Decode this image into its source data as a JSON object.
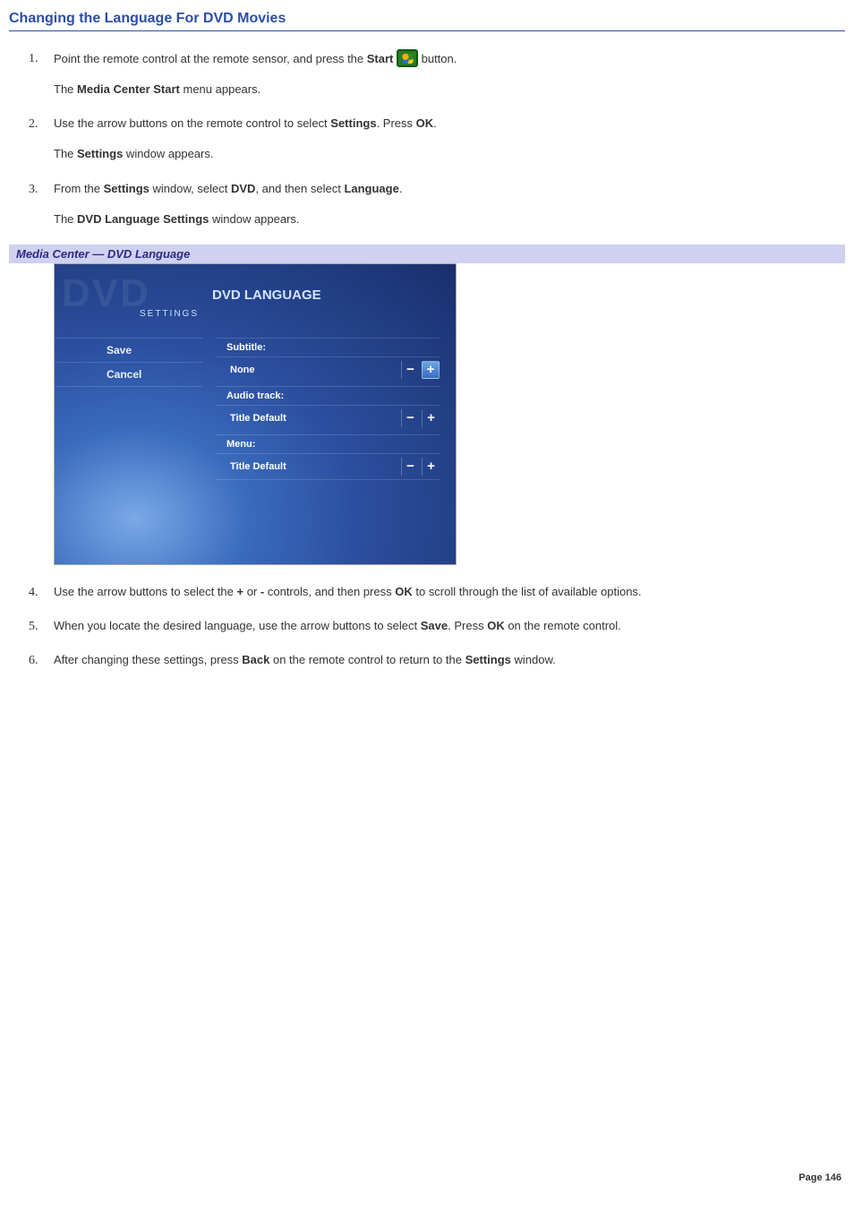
{
  "heading": "Changing the Language For DVD Movies",
  "steps": {
    "1": {
      "line1_a": "Point the remote control at the remote sensor, and press the ",
      "line1_bold": "Start",
      "line1_b": " button.",
      "line2_a": "The ",
      "line2_bold": "Media Center Start",
      "line2_b": " menu appears."
    },
    "2": {
      "line1_a": "Use the arrow buttons on the remote control to select ",
      "line1_bold1": "Settings",
      "line1_b": ". Press ",
      "line1_bold2": "OK",
      "line1_c": ".",
      "line2_a": "The ",
      "line2_bold": "Settings",
      "line2_b": " window appears."
    },
    "3": {
      "line1_a": "From the ",
      "line1_bold1": "Settings",
      "line1_b": " window, select ",
      "line1_bold2": "DVD",
      "line1_c": ", and then select ",
      "line1_bold3": "Language",
      "line1_d": ".",
      "line2_a": "The ",
      "line2_bold": "DVD Language Settings",
      "line2_b": " window appears."
    },
    "4": {
      "a": "Use the arrow buttons to select the ",
      "b1": "+",
      "b": " or ",
      "b2": "-",
      "c": " controls, and then press ",
      "b3": "OK",
      "d": " to scroll through the list of available options."
    },
    "5": {
      "a": "When you locate the desired language, use the arrow buttons to select ",
      "b1": "Save",
      "b": ". Press ",
      "b2": "OK",
      "c": " on the remote control."
    },
    "6": {
      "a": "After changing these settings, press ",
      "b1": "Back",
      "b": " on the remote control to return to the ",
      "b2": "Settings",
      "c": " window."
    }
  },
  "caption": "Media Center — DVD Language",
  "mc": {
    "ghost": "DVD",
    "settings_label": "SETTINGS",
    "title": "DVD LANGUAGE",
    "save": "Save",
    "cancel": "Cancel",
    "subtitle_label": "Subtitle:",
    "subtitle_value": "None",
    "audio_label": "Audio track:",
    "audio_value": "Title Default",
    "menu_label": "Menu:",
    "menu_value": "Title Default",
    "minus": "−",
    "plus": "+",
    "bg_gradient_colors": [
      "#7aa9e8",
      "#3a6bbd",
      "#2b4e9e",
      "#1a2f6b"
    ],
    "highlight_plus_bg": [
      "#6aa8e8",
      "#3a6bbd"
    ]
  },
  "page_number": "Page 146",
  "colors": {
    "heading": "#2b4ea8",
    "caption_bg": "#d0d0f0",
    "caption_text": "#2a2a80"
  }
}
